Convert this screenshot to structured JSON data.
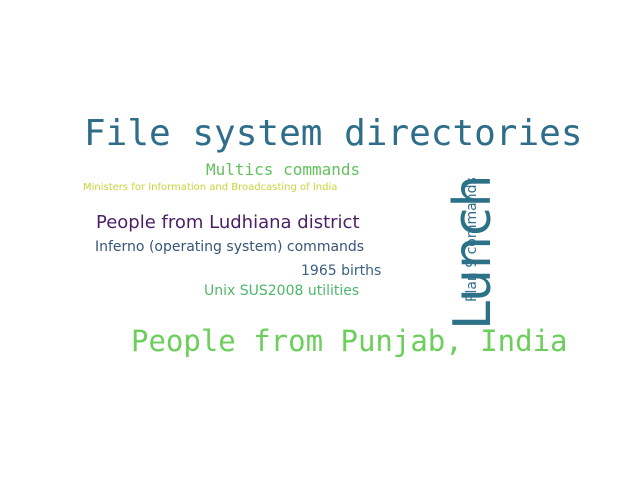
{
  "colors": {
    "background": "#ffffff"
  },
  "words": [
    {
      "id": "file",
      "text": "File system directories",
      "color": "#2f6e8a",
      "orientation": "horizontal"
    },
    {
      "id": "multics",
      "text": "Multics commands",
      "color": "#62c15c",
      "orientation": "horizontal"
    },
    {
      "id": "ministers",
      "text": "Ministers for Information and Broadcasting of India",
      "color": "#c8d43a",
      "orientation": "horizontal"
    },
    {
      "id": "ludhiana",
      "text": "People from Ludhiana district",
      "color": "#4b1f63",
      "orientation": "horizontal"
    },
    {
      "id": "inferno",
      "text": "Inferno (operating system) commands",
      "color": "#36557a",
      "orientation": "horizontal"
    },
    {
      "id": "births",
      "text": "1965 births",
      "color": "#3a5f82",
      "orientation": "horizontal"
    },
    {
      "id": "unix",
      "text": "Unix SUS2008 utilities",
      "color": "#4db86a",
      "orientation": "horizontal"
    },
    {
      "id": "punjab",
      "text": "People from Punjab, India",
      "color": "#6ccf5c",
      "orientation": "horizontal"
    },
    {
      "id": "lunch",
      "text": "Lunch",
      "color": "#2b7187",
      "orientation": "vertical"
    },
    {
      "id": "plan9",
      "text": "Plan 9 commands",
      "color": "#336f8c",
      "orientation": "vertical"
    }
  ]
}
